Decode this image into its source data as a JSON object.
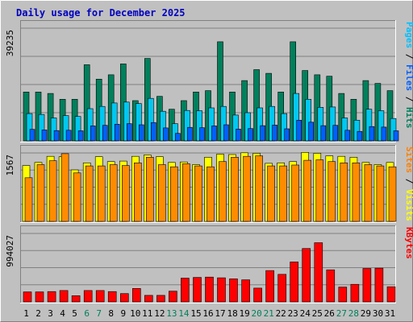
{
  "chart_data": {
    "type": "bar",
    "title": "Daily usage for December 2025",
    "categories": [
      "1",
      "2",
      "3",
      "4",
      "5",
      "6",
      "7",
      "8",
      "9",
      "10",
      "11",
      "12",
      "13",
      "14",
      "15",
      "16",
      "17",
      "18",
      "19",
      "20",
      "21",
      "22",
      "23",
      "24",
      "25",
      "26",
      "27",
      "28",
      "29",
      "30",
      "31"
    ],
    "weekend_days": [
      "6",
      "7",
      "13",
      "14",
      "20",
      "21",
      "27",
      "28"
    ],
    "panels": [
      {
        "id": "hits",
        "max_label": "39235",
        "max": 39235,
        "mid_label": "",
        "legend": [
          {
            "text": "Pages",
            "color": "#00c0ff"
          },
          {
            "text": "Files",
            "color": "#0060ff"
          },
          {
            "text": "Hits",
            "color": "#00805c"
          }
        ],
        "series": [
          {
            "name": "Hits",
            "color": "#00805c",
            "values": [
              17000,
              17000,
              16500,
              14500,
              14500,
              26500,
              21500,
              23000,
              26800,
              14000,
              28700,
              15500,
              11000,
              14000,
              17000,
              17500,
              34500,
              17000,
              21000,
              24800,
              23500,
              17000,
              34500,
              24500,
              23000,
              22500,
              16500,
              14500,
              21000,
              20000,
              17500
            ]
          },
          {
            "name": "Files",
            "color": "#00c8f0",
            "values": [
              9500,
              9200,
              8000,
              8800,
              8500,
              11200,
              12000,
              13200,
              13500,
              13000,
              14800,
              10300,
              6000,
              10600,
              10500,
              11500,
              12000,
              9000,
              9800,
              11500,
              12000,
              9500,
              16500,
              14500,
              11700,
              11800,
              8000,
              7200,
              11000,
              10500,
              7800
            ]
          },
          {
            "name": "Pages",
            "color": "#0060ff",
            "values": [
              4000,
              3800,
              3600,
              3700,
              3500,
              5200,
              5400,
              5800,
              6000,
              5600,
              6400,
              4500,
              2600,
              4700,
              4600,
              5200,
              5600,
              4100,
              4300,
              5300,
              5500,
              4200,
              7200,
              6500,
              5300,
              5400,
              3700,
              3300,
              5000,
              4800,
              3500
            ]
          }
        ]
      },
      {
        "id": "visits",
        "max_label": "1567",
        "max": 1567,
        "legend": [
          {
            "text": "Sites",
            "color": "#ff8000"
          },
          {
            "text": "Visits",
            "color": "#ffff00"
          }
        ],
        "series": [
          {
            "name": "Visits",
            "color": "#ffff00",
            "values": [
              1280,
              1350,
              1490,
              1480,
              1180,
              1340,
              1480,
              1370,
              1380,
              1490,
              1520,
              1480,
              1350,
              1360,
              1300,
              1470,
              1540,
              1530,
              1570,
              1560,
              1330,
              1340,
              1370,
              1580,
              1560,
              1500,
              1490,
              1470,
              1350,
              1300,
              1350
            ]
          },
          {
            "name": "Sites",
            "color": "#ff8c00",
            "values": [
              1000,
              1300,
              1390,
              1550,
              1110,
              1270,
              1270,
              1300,
              1280,
              1340,
              1470,
              1300,
              1250,
              1320,
              1270,
              1250,
              1370,
              1470,
              1490,
              1500,
              1270,
              1270,
              1290,
              1400,
              1410,
              1370,
              1340,
              1340,
              1300,
              1270,
              1250
            ]
          }
        ]
      },
      {
        "id": "kbytes",
        "max_label": "994027",
        "max": 994027,
        "legend": [
          {
            "text": "KBytes",
            "color": "#ff0000"
          }
        ],
        "series": [
          {
            "name": "KBytes",
            "color": "#ff0000",
            "values": [
              145000,
              145000,
              150000,
              165000,
              90000,
              165000,
              165000,
              150000,
              120000,
              195000,
              95000,
              95000,
              155000,
              345000,
              355000,
              360000,
              350000,
              335000,
              320000,
              200000,
              455000,
              400000,
              580000,
              775000,
              860000,
              465000,
              215000,
              255000,
              485000,
              490000,
              220000
            ]
          }
        ]
      }
    ]
  }
}
